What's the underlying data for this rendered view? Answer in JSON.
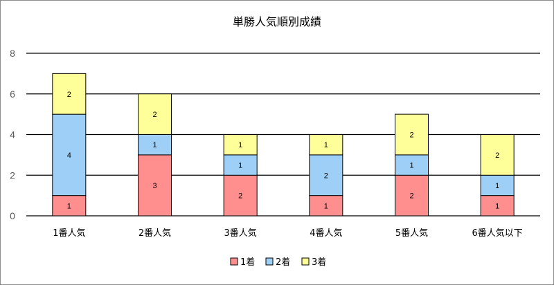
{
  "chart_data": {
    "type": "bar",
    "stacked": true,
    "title": "単勝人気順別成績",
    "categories": [
      "1番人気",
      "2番人気",
      "3番人気",
      "4番人気",
      "5番人気",
      "6番人気以下"
    ],
    "series": [
      {
        "name": "1着",
        "color": "#FF8F8F",
        "values": [
          1,
          3,
          2,
          1,
          2,
          1
        ]
      },
      {
        "name": "2着",
        "color": "#9DCFF7",
        "values": [
          4,
          1,
          1,
          2,
          1,
          1
        ]
      },
      {
        "name": "3着",
        "color": "#FFFF99",
        "values": [
          2,
          2,
          1,
          1,
          2,
          2
        ]
      }
    ],
    "ylim": [
      0,
      8
    ],
    "yticks": [
      0,
      2,
      4,
      6,
      8
    ],
    "grid": true,
    "legend": "bottom",
    "xlabel": "",
    "ylabel": ""
  }
}
